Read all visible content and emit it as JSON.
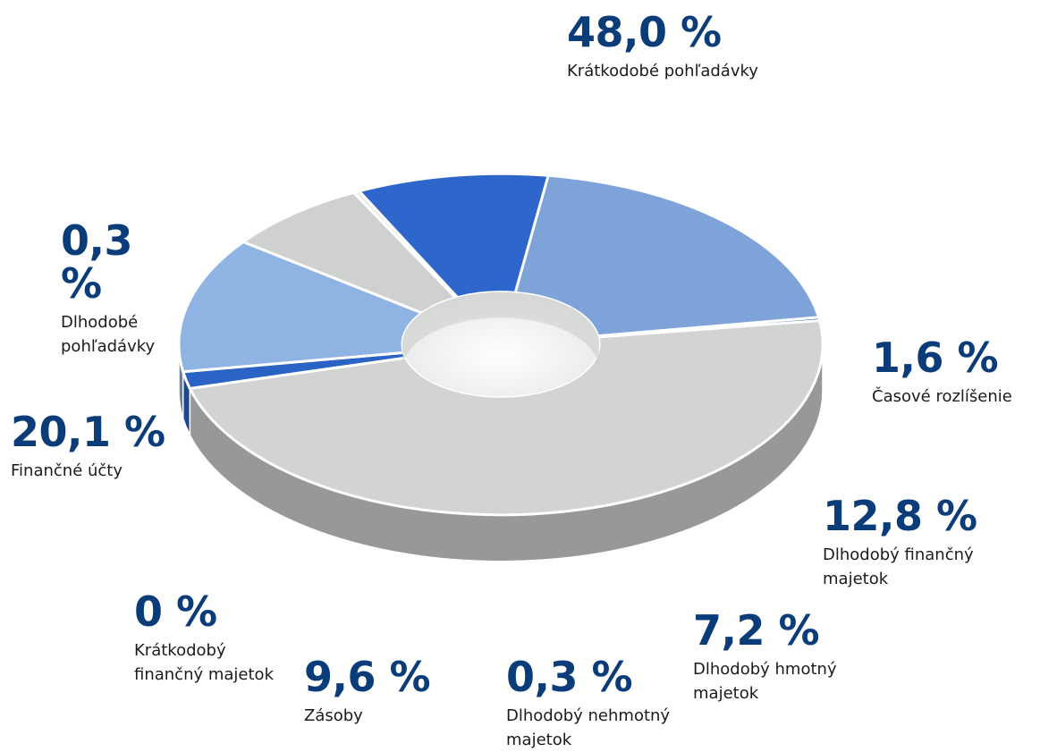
{
  "chart_data": {
    "type": "pie",
    "variant": "donut-3d",
    "slices": [
      {
        "label": "Krátkodobé pohľadávky",
        "value": 48.0,
        "value_label": "48,0 %",
        "color": "#d2d3d3"
      },
      {
        "label": "Časové rozlíšenie",
        "value": 1.6,
        "value_label": "1,6 %",
        "color": "#2a63c4"
      },
      {
        "label": "Dlhodobý finančný majetok",
        "value": 12.8,
        "value_label": "12,8 %",
        "color": "#8fb3e2"
      },
      {
        "label": "Dlhodobý hmotný majetok",
        "value": 7.2,
        "value_label": "7,2 %",
        "color": "#cfd0d0"
      },
      {
        "label": "Dlhodobý nehmotný majetok",
        "value": 0.3,
        "value_label": "0,3 %",
        "color": "#e9eaea"
      },
      {
        "label": "Zásoby",
        "value": 9.6,
        "value_label": "9,6 %",
        "color": "#2e66cc"
      },
      {
        "label": "Krátkodobý finančný majetok",
        "value": 0.0,
        "value_label": "0 %",
        "color": "#3b6fc8"
      },
      {
        "label": "Finančné účty",
        "value": 20.1,
        "value_label": "20,1 %",
        "color": "#7ea3d8"
      },
      {
        "label": "Dlhodobé pohľadávky",
        "value": 0.3,
        "value_label": "0,3 %",
        "color": "#2a63c4"
      }
    ],
    "title": "",
    "legend": "none"
  }
}
